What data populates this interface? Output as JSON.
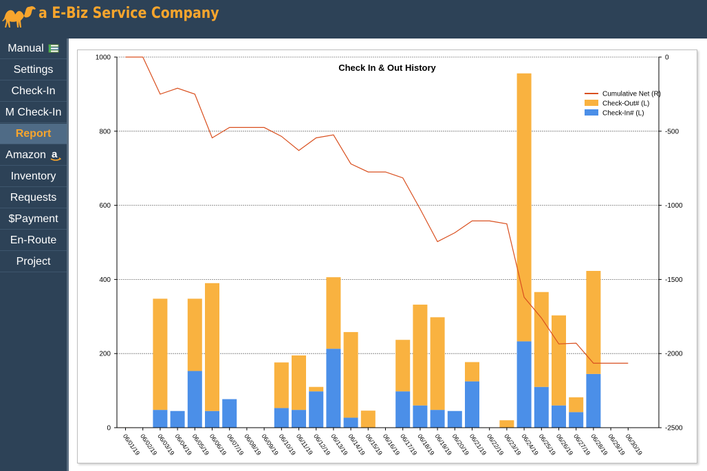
{
  "header": {
    "brand": "a E-Biz Service Company",
    "logo_icon": "camel-icon",
    "brand_color": "#f7a52d"
  },
  "sidebar": {
    "items": [
      {
        "label": "Manual",
        "icon": "book-stack-icon",
        "active": false
      },
      {
        "label": "Settings",
        "active": false
      },
      {
        "label": "Check-In",
        "active": false
      },
      {
        "label": "M Check-In",
        "active": false
      },
      {
        "label": "Report",
        "active": true
      },
      {
        "label": "Amazon",
        "icon": "amazon-icon",
        "active": false
      },
      {
        "label": "Inventory",
        "active": false
      },
      {
        "label": "Requests",
        "active": false
      },
      {
        "label": "$Payment",
        "active": false
      },
      {
        "label": "En-Route",
        "active": false
      },
      {
        "label": "Project",
        "active": false
      }
    ]
  },
  "chart_data": {
    "type": "bar",
    "title": "Check In & Out History",
    "stacked": true,
    "categories": [
      "06/01/19",
      "06/02/19",
      "06/03/19",
      "06/04/19",
      "06/05/19",
      "06/06/19",
      "06/07/19",
      "06/08/19",
      "06/09/19",
      "06/10/19",
      "06/11/19",
      "06/12/19",
      "06/13/19",
      "06/14/19",
      "06/15/19",
      "06/16/19",
      "06/17/19",
      "06/18/19",
      "06/19/19",
      "06/20/19",
      "06/21/19",
      "06/22/19",
      "06/23/19",
      "06/24/19",
      "06/25/19",
      "06/26/19",
      "06/27/19",
      "06/28/19",
      "06/29/19",
      "06/30/19"
    ],
    "series": [
      {
        "name": "Check-In# (L)",
        "axis": "left",
        "color": "#4b8fe8",
        "values": [
          0,
          0,
          48,
          45,
          153,
          45,
          77,
          0,
          0,
          53,
          48,
          98,
          213,
          27,
          0,
          0,
          98,
          60,
          48,
          45,
          125,
          0,
          0,
          233,
          110,
          60,
          42,
          145,
          0,
          0
        ]
      },
      {
        "name": "Check-Out# (L)",
        "axis": "left",
        "color": "#f9b240",
        "values": [
          1,
          0,
          300,
          0,
          195,
          345,
          0,
          0,
          0,
          123,
          147,
          12,
          193,
          231,
          46,
          0,
          139,
          272,
          250,
          0,
          52,
          0,
          20,
          723,
          256,
          243,
          40,
          278,
          0,
          0
        ]
      },
      {
        "name": "Cumulative Net (R)",
        "axis": "right",
        "type": "line",
        "color": "#d94f1e",
        "values": [
          0,
          0,
          -250,
          -210,
          -250,
          -545,
          -475,
          -475,
          -475,
          -535,
          -630,
          -545,
          -525,
          -720,
          -775,
          -775,
          -815,
          -1025,
          -1245,
          -1185,
          -1105,
          -1105,
          -1125,
          -1620,
          -1760,
          -1935,
          -1930,
          -2065,
          -2065,
          -2065
        ]
      }
    ],
    "legend": [
      "Cumulative Net (R)",
      "Check-Out# (L)",
      "Check-In# (L)"
    ],
    "legend_position": "top-right",
    "y_left": {
      "min": 0,
      "max": 1000,
      "ticks": [
        0,
        200,
        400,
        600,
        800,
        1000
      ]
    },
    "y_right": {
      "min": -2500,
      "max": 0,
      "ticks": [
        0,
        -500,
        -1000,
        -1500,
        -2000,
        -2500
      ]
    },
    "grid": true
  }
}
